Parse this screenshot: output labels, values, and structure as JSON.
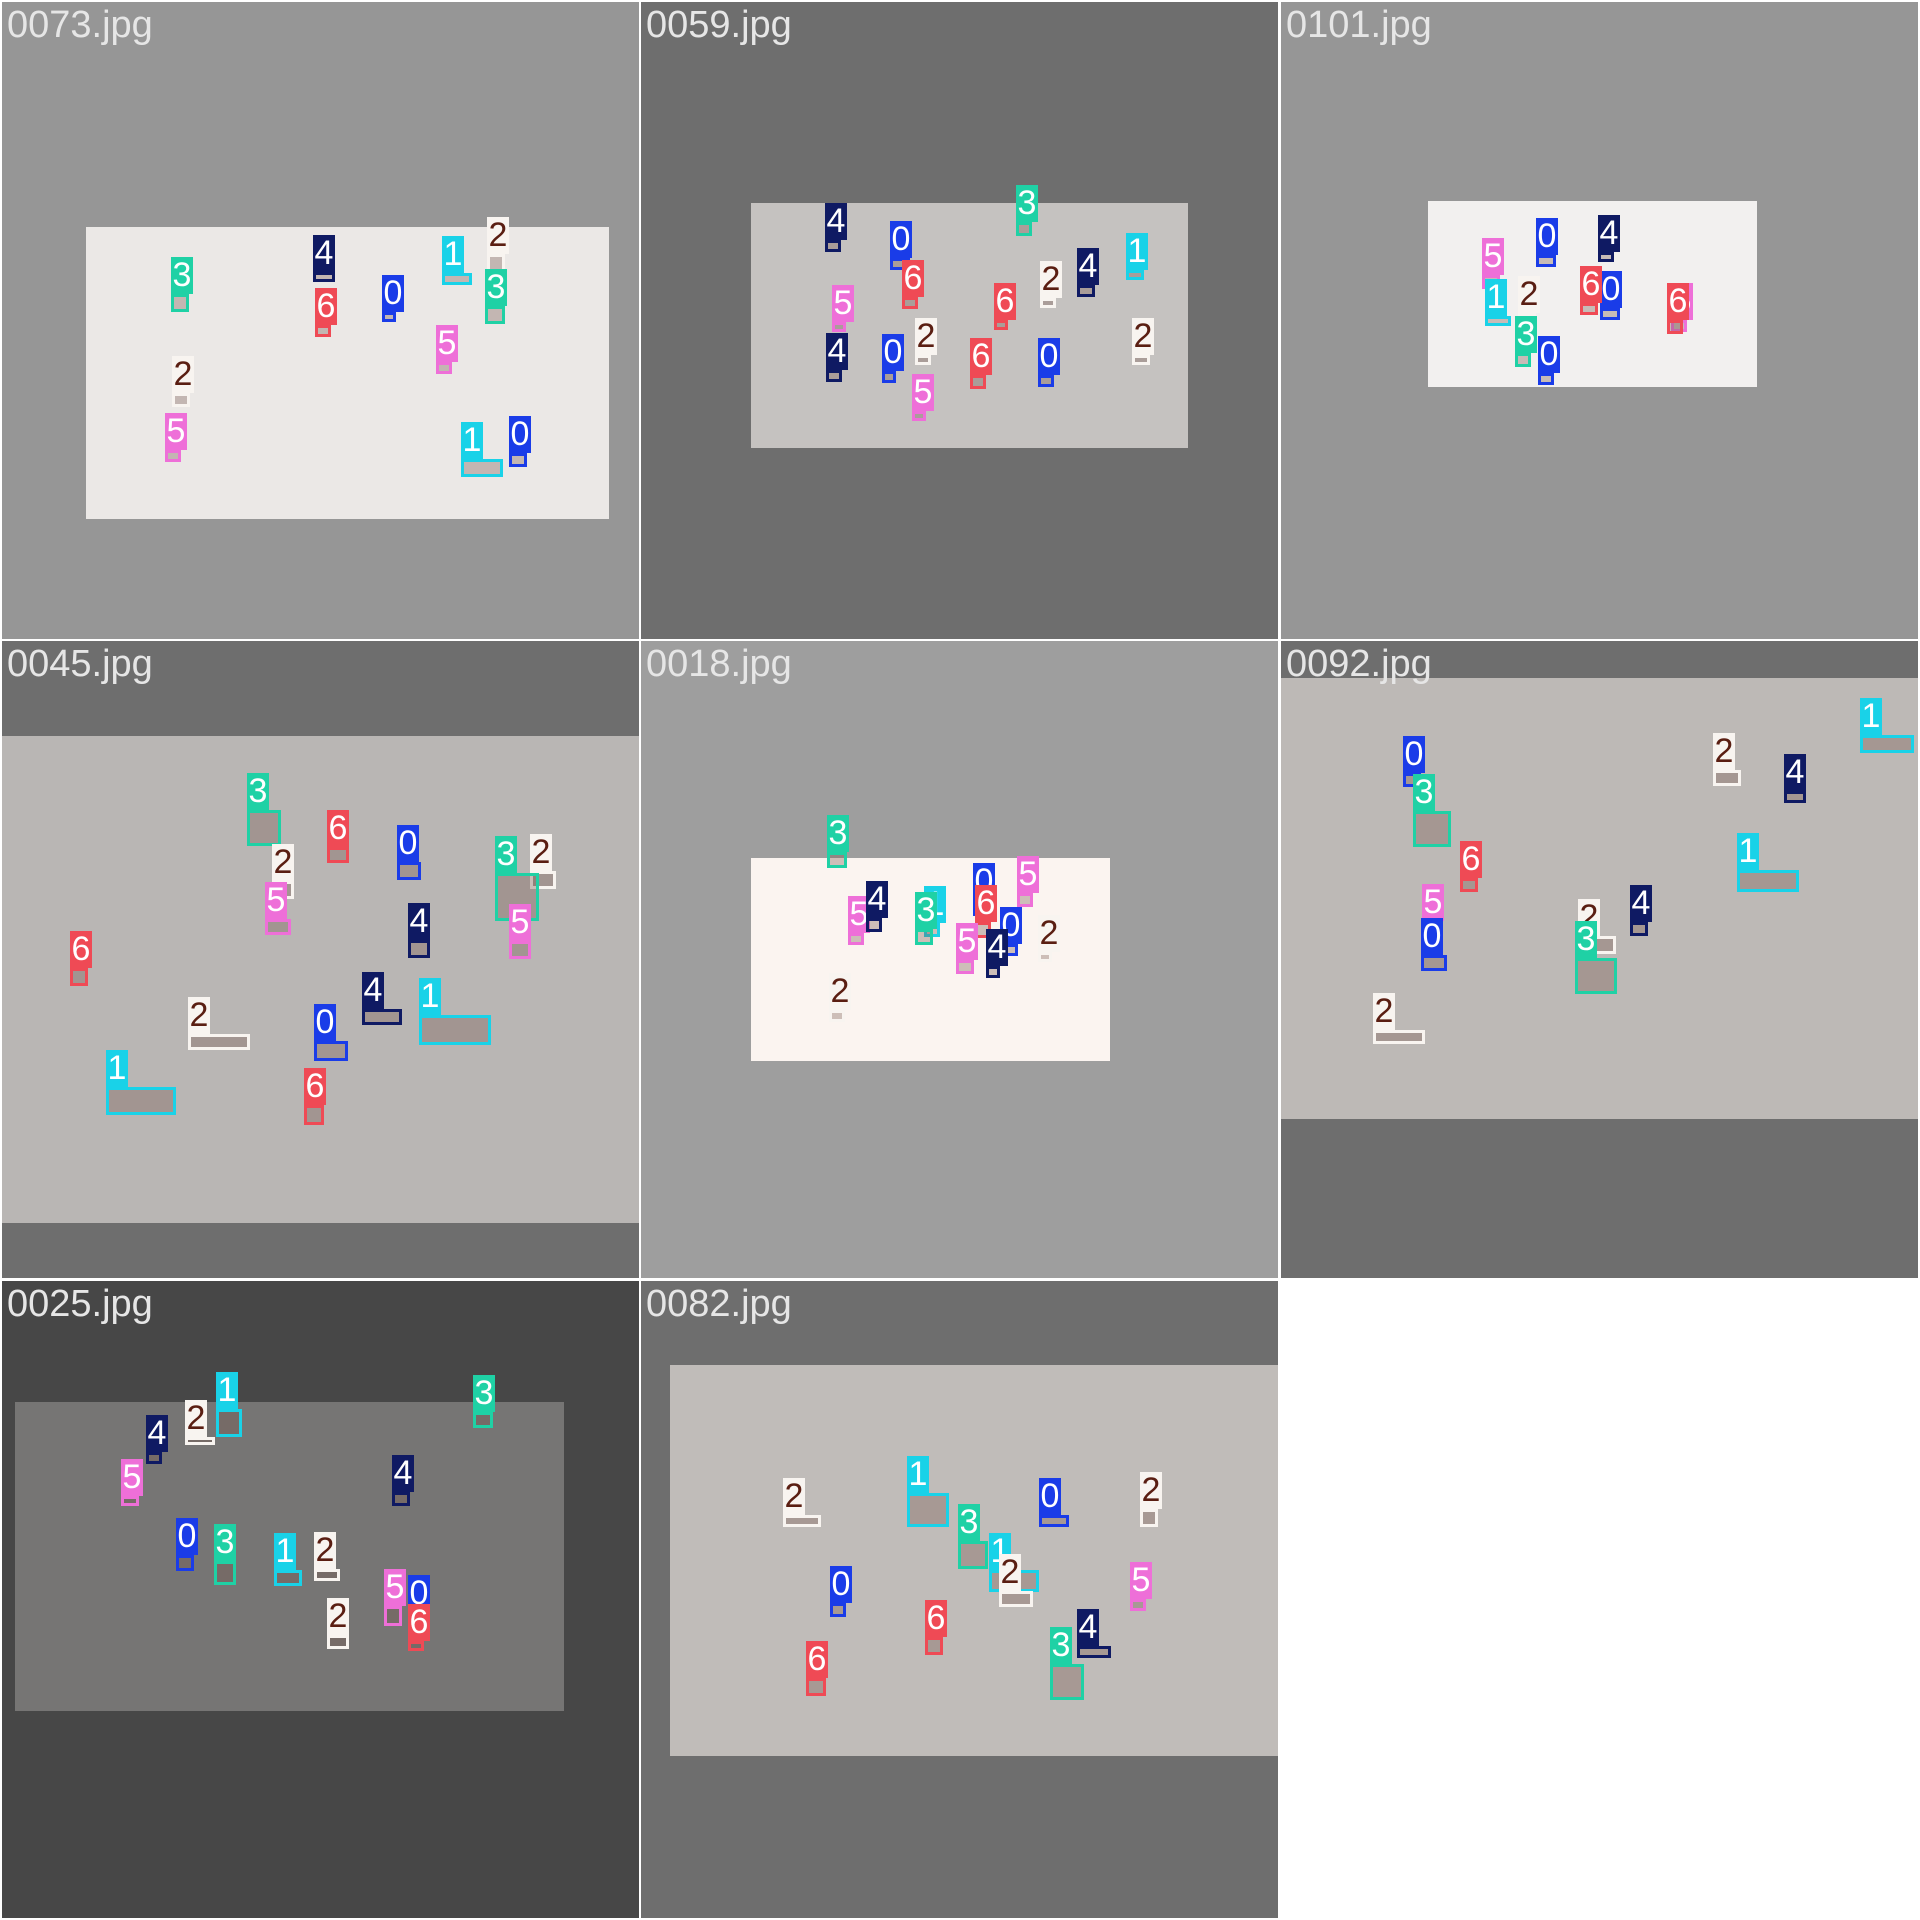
{
  "grid_tiles": [
    {
      "filename": "0073.jpg",
      "bg": "#969696",
      "photo_bg": "#ebe8e6",
      "detections": [
        {
          "cls": 3
        },
        {
          "cls": 4
        },
        {
          "cls": 1
        },
        {
          "cls": 2
        },
        {
          "cls": 3
        },
        {
          "cls": 6
        },
        {
          "cls": 0
        },
        {
          "cls": 5
        },
        {
          "cls": 2
        },
        {
          "cls": 5
        },
        {
          "cls": 1
        },
        {
          "cls": 0
        }
      ]
    },
    {
      "filename": "0059.jpg",
      "bg": "#6e6e6e",
      "photo_bg": "#c5c2c0",
      "detections": [
        {
          "cls": 4
        },
        {
          "cls": 3
        },
        {
          "cls": 0
        },
        {
          "cls": 1
        },
        {
          "cls": 6
        },
        {
          "cls": 6
        },
        {
          "cls": 2
        },
        {
          "cls": 4
        },
        {
          "cls": 5
        },
        {
          "cls": 2
        },
        {
          "cls": 2
        },
        {
          "cls": 4
        },
        {
          "cls": 6
        },
        {
          "cls": 0
        },
        {
          "cls": 0
        },
        {
          "cls": 5
        }
      ]
    },
    {
      "filename": "0101.jpg",
      "bg": "#969696",
      "photo_bg": "#f2f0ef",
      "detections": [
        {
          "cls": 5
        },
        {
          "cls": 4
        },
        {
          "cls": 0
        },
        {
          "cls": 1
        },
        {
          "cls": 0
        },
        {
          "cls": 2
        },
        {
          "cls": 6
        },
        {
          "cls": 5
        },
        {
          "cls": 6
        },
        {
          "cls": 3
        },
        {
          "cls": 0
        }
      ]
    },
    {
      "filename": "0045.jpg",
      "bg": "#6e6e6e",
      "photo_bg": "#b9b6b4",
      "detections": [
        {
          "cls": 3
        },
        {
          "cls": 6
        },
        {
          "cls": 2
        },
        {
          "cls": 0
        },
        {
          "cls": 2
        },
        {
          "cls": 5
        },
        {
          "cls": 3
        },
        {
          "cls": 4
        },
        {
          "cls": 5
        },
        {
          "cls": 6
        },
        {
          "cls": 4
        },
        {
          "cls": 1
        },
        {
          "cls": 2
        },
        {
          "cls": 0
        },
        {
          "cls": 1
        },
        {
          "cls": 6
        }
      ]
    },
    {
      "filename": "0018.jpg",
      "bg": "#9e9e9e",
      "photo_bg": "#fbf4f0",
      "detections": [
        {
          "cls": 3
        },
        {
          "cls": 0
        },
        {
          "cls": 5
        },
        {
          "cls": 4
        },
        {
          "cls": 1
        },
        {
          "cls": 5
        },
        {
          "cls": 3
        },
        {
          "cls": 6
        },
        {
          "cls": 0
        },
        {
          "cls": 2
        },
        {
          "cls": 5
        },
        {
          "cls": 4
        },
        {
          "cls": 2
        }
      ]
    },
    {
      "filename": "0092.jpg",
      "bg": "#6e6e6e",
      "photo_bg": "#bdb9b6",
      "detections": [
        {
          "cls": 1
        },
        {
          "cls": 0
        },
        {
          "cls": 2
        },
        {
          "cls": 4
        },
        {
          "cls": 3
        },
        {
          "cls": 1
        },
        {
          "cls": 6
        },
        {
          "cls": 5
        },
        {
          "cls": 2
        },
        {
          "cls": 4
        },
        {
          "cls": 0
        },
        {
          "cls": 3
        },
        {
          "cls": 2
        }
      ]
    },
    {
      "filename": "0025.jpg",
      "bg": "#474747",
      "photo_bg": "#767574",
      "detections": [
        {
          "cls": 1
        },
        {
          "cls": 3
        },
        {
          "cls": 2
        },
        {
          "cls": 4
        },
        {
          "cls": 5
        },
        {
          "cls": 4
        },
        {
          "cls": 0
        },
        {
          "cls": 3
        },
        {
          "cls": 1
        },
        {
          "cls": 2
        },
        {
          "cls": 5
        },
        {
          "cls": 0
        },
        {
          "cls": 2
        },
        {
          "cls": 6
        }
      ]
    },
    {
      "filename": "0082.jpg",
      "bg": "#6e6e6e",
      "photo_bg": "#c0bcb9",
      "detections": [
        {
          "cls": 1
        },
        {
          "cls": 2
        },
        {
          "cls": 0
        },
        {
          "cls": 2
        },
        {
          "cls": 3
        },
        {
          "cls": 1
        },
        {
          "cls": 2
        },
        {
          "cls": 5
        },
        {
          "cls": 0
        },
        {
          "cls": 6
        },
        {
          "cls": 3
        },
        {
          "cls": 4
        },
        {
          "cls": 6
        }
      ]
    }
  ],
  "class_colors": {
    "0": "#1a3ce8",
    "1": "#19d2e8",
    "2": "#f8f4f0",
    "3": "#1fd1a5",
    "4": "#0f1a63",
    "5": "#ee6fd8",
    "6": "#ef4a55"
  },
  "class_text_colors": {
    "0": "#ffffff",
    "1": "#ffffff",
    "2": "#5a1e12",
    "3": "#ffffff",
    "4": "#ffffff",
    "5": "#ffffff",
    "6": "#ffffff"
  }
}
